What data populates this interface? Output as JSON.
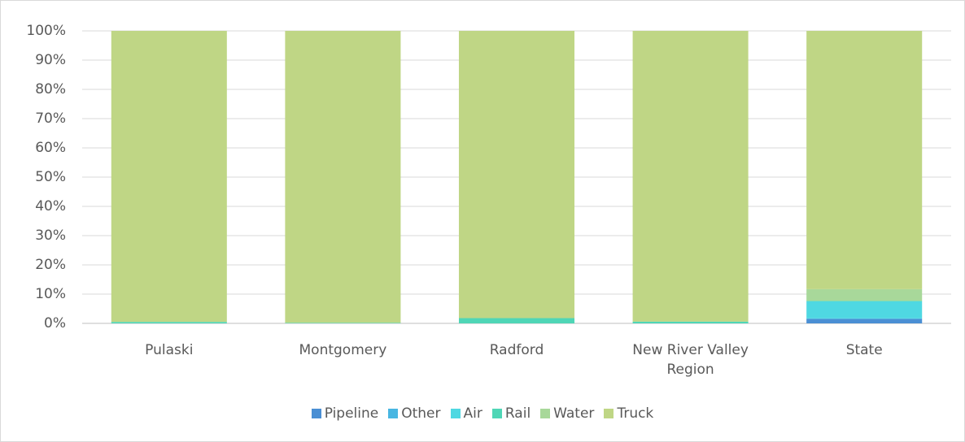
{
  "chart_data": {
    "type": "stacked_bar_percent",
    "categories": [
      "Pulaski",
      "Montgomery",
      "Radford",
      "New River Valley Region",
      "State"
    ],
    "series": [
      {
        "name": "Pipeline",
        "color": "#4a8fd4",
        "values": [
          0,
          0,
          0,
          0,
          1.5
        ]
      },
      {
        "name": "Other",
        "color": "#48b6e2",
        "values": [
          0,
          0,
          0,
          0,
          0.2
        ]
      },
      {
        "name": "Air",
        "color": "#4fd8e2",
        "values": [
          0,
          0,
          0,
          0,
          5.8
        ]
      },
      {
        "name": "Rail",
        "color": "#4fd6b6",
        "values": [
          0.5,
          0.2,
          1.8,
          0.6,
          0.2
        ]
      },
      {
        "name": "Water",
        "color": "#a8d89a",
        "values": [
          0,
          0,
          0,
          0,
          4.0
        ]
      },
      {
        "name": "Truck",
        "color": "#bfd685",
        "values": [
          99.5,
          99.8,
          98.2,
          99.4,
          88.3
        ]
      }
    ],
    "ylim": [
      0,
      100
    ],
    "yticks": [
      {
        "value": 0,
        "label": "0%"
      },
      {
        "value": 10,
        "label": "10%"
      },
      {
        "value": 20,
        "label": "20%"
      },
      {
        "value": 30,
        "label": "30%"
      },
      {
        "value": 40,
        "label": "40%"
      },
      {
        "value": 50,
        "label": "50%"
      },
      {
        "value": 60,
        "label": "60%"
      },
      {
        "value": 70,
        "label": "70%"
      },
      {
        "value": 80,
        "label": "80%"
      },
      {
        "value": 90,
        "label": "90%"
      },
      {
        "value": 100,
        "label": "100%"
      }
    ],
    "grid": true,
    "legend": "bottom"
  }
}
